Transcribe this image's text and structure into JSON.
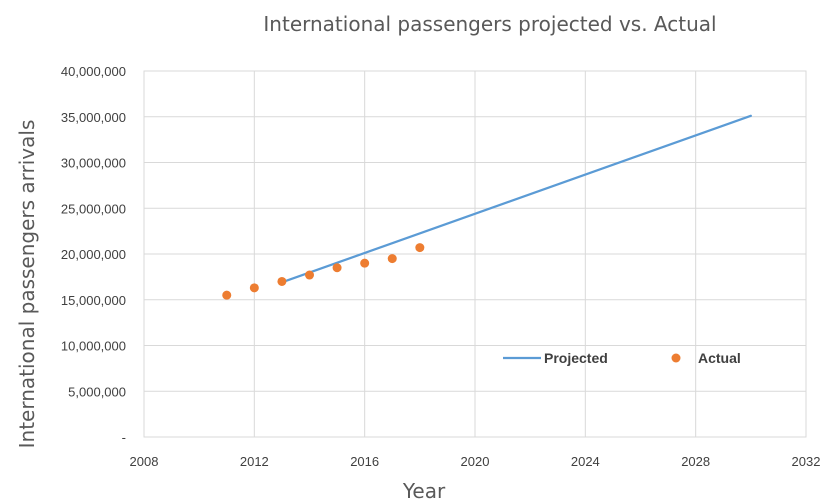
{
  "chart_data": {
    "type": "scatter",
    "title": "International passengers projected vs. Actual",
    "xlabel": "Year",
    "ylabel": "International passengers arrivals",
    "xlim": [
      2008,
      2032
    ],
    "ylim": [
      0,
      40000000
    ],
    "x_ticks": [
      2008,
      2012,
      2016,
      2020,
      2024,
      2028,
      2032
    ],
    "x_tick_labels": [
      "2008",
      "2012",
      "2016",
      "2020",
      "2024",
      "2028",
      "2032"
    ],
    "y_ticks": [
      0,
      5000000,
      10000000,
      15000000,
      20000000,
      25000000,
      30000000,
      35000000,
      40000000
    ],
    "y_tick_labels": [
      "-",
      "5,000,000",
      "10,000,000",
      "15,000,000",
      "20,000,000",
      "25,000,000",
      "30,000,000",
      "35,000,000",
      "40,000,000"
    ],
    "grid": true,
    "legend_position": "bottom-right inside plot",
    "series": [
      {
        "name": "Projected",
        "kind": "line",
        "color": "#5b9bd5",
        "points": [
          {
            "x": 2013,
            "y": 16900000
          },
          {
            "x": 2030,
            "y": 35100000
          }
        ]
      },
      {
        "name": "Actual",
        "kind": "marker",
        "color": "#ed7d31",
        "points": [
          {
            "x": 2011,
            "y": 15500000
          },
          {
            "x": 2012,
            "y": 16300000
          },
          {
            "x": 2013,
            "y": 17000000
          },
          {
            "x": 2014,
            "y": 17700000
          },
          {
            "x": 2015,
            "y": 18500000
          },
          {
            "x": 2016,
            "y": 19000000
          },
          {
            "x": 2017,
            "y": 19500000
          },
          {
            "x": 2018,
            "y": 20700000
          }
        ]
      }
    ]
  }
}
